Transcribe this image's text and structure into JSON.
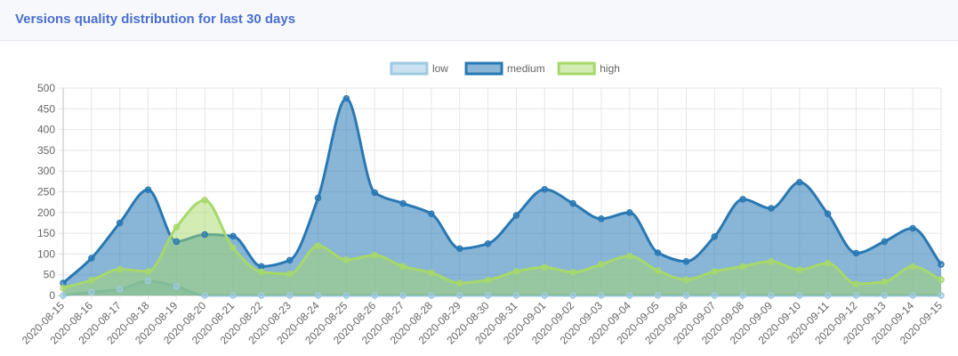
{
  "header": {
    "title": "Versions quality distribution for last 30 days"
  },
  "chart_data": {
    "type": "area",
    "title": "",
    "xlabel": "",
    "ylabel": "",
    "ylim": [
      0,
      500
    ],
    "yticks": [
      0,
      50,
      100,
      150,
      200,
      250,
      300,
      350,
      400,
      450,
      500
    ],
    "grid": true,
    "legend_position": "top-center",
    "categories": [
      "2020-08-15",
      "2020-08-16",
      "2020-08-17",
      "2020-08-18",
      "2020-08-19",
      "2020-08-20",
      "2020-08-21",
      "2020-08-22",
      "2020-08-23",
      "2020-08-24",
      "2020-08-25",
      "2020-08-26",
      "2020-08-27",
      "2020-08-28",
      "2020-08-29",
      "2020-08-30",
      "2020-08-31",
      "2020-09-01",
      "2020-09-02",
      "2020-09-03",
      "2020-09-04",
      "2020-09-05",
      "2020-09-06",
      "2020-09-07",
      "2020-09-08",
      "2020-09-09",
      "2020-09-10",
      "2020-09-11",
      "2020-09-12",
      "2020-09-13",
      "2020-09-14",
      "2020-09-15"
    ],
    "series": [
      {
        "name": "low",
        "stroke": "#9ecae1",
        "fill": "rgba(158,202,225,0.55)",
        "values": [
          0,
          8,
          15,
          35,
          22,
          0,
          0,
          0,
          0,
          0,
          0,
          0,
          0,
          0,
          0,
          0,
          0,
          0,
          0,
          0,
          0,
          0,
          0,
          0,
          0,
          0,
          0,
          0,
          0,
          0,
          0,
          0
        ]
      },
      {
        "name": "medium",
        "stroke": "#2878b4",
        "fill": "rgba(40,120,180,0.55)",
        "values": [
          30,
          90,
          175,
          255,
          130,
          147,
          143,
          70,
          85,
          235,
          475,
          248,
          222,
          197,
          113,
          125,
          193,
          256,
          222,
          185,
          200,
          103,
          82,
          142,
          232,
          210,
          273,
          197,
          102,
          130,
          162,
          75
        ]
      },
      {
        "name": "high",
        "stroke": "#a6d96a",
        "fill": "rgba(166,217,106,0.5)",
        "values": [
          18,
          37,
          63,
          58,
          165,
          230,
          115,
          57,
          52,
          120,
          86,
          97,
          70,
          55,
          30,
          37,
          58,
          68,
          56,
          75,
          95,
          60,
          38,
          58,
          70,
          82,
          62,
          78,
          28,
          33,
          70,
          38
        ]
      }
    ]
  }
}
